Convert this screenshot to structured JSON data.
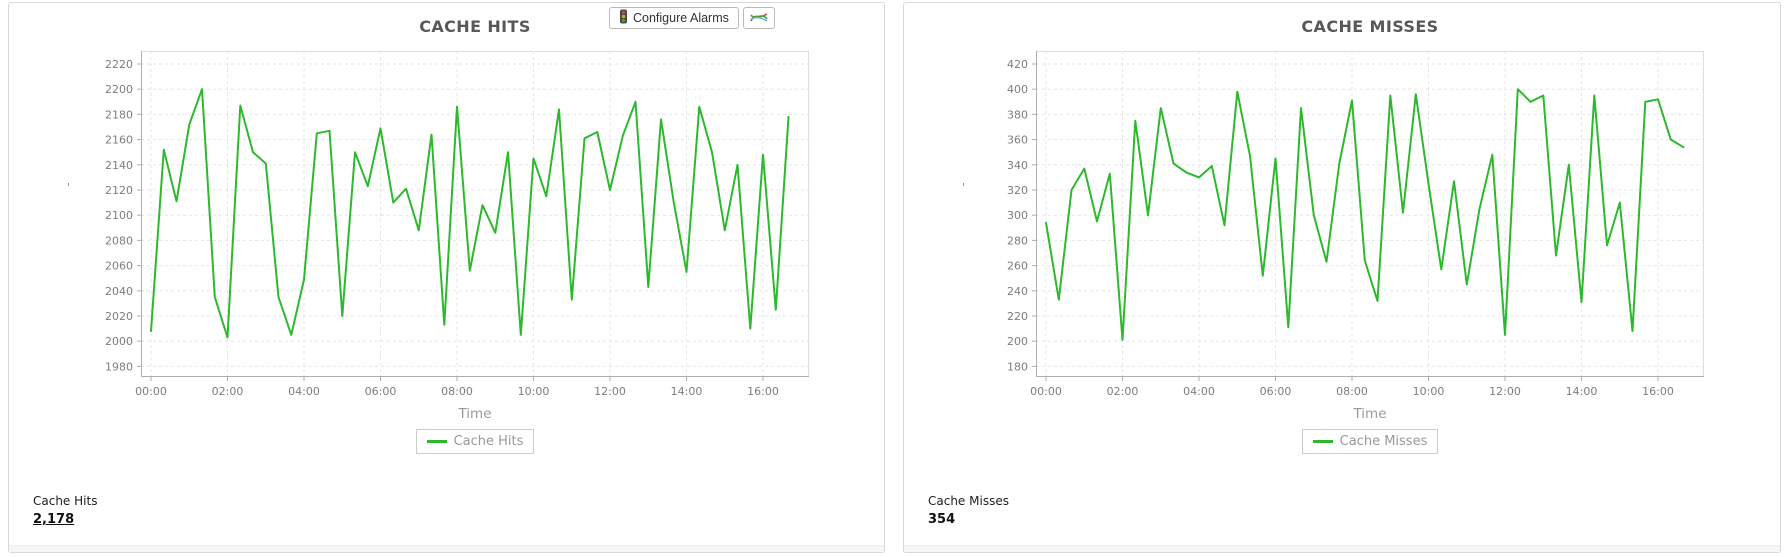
{
  "page": {
    "background": "#ffffff"
  },
  "toolbar": {
    "configure_alarms_label": "Configure Alarms",
    "traffic_light_icon": "traffic-light-icon",
    "mini_chart_icon": "line-chart-icon"
  },
  "colors": {
    "series_green": "#2eb82e",
    "grid": "#e5e5e5",
    "axis": "#aeaeae",
    "title": "#58585a"
  },
  "y_axis_mark": "'",
  "chart_data": [
    {
      "type": "line",
      "title": "CACHE HITS",
      "xlabel": "Time",
      "legend": "Cache Hits",
      "footer_label": "Cache Hits",
      "footer_value": "2,178",
      "footer_value_underline": true,
      "line_color": "#2eb82e",
      "grid": true,
      "legend_position": "bottom",
      "y_min": 1980,
      "y_max": 2220,
      "y_step": 20,
      "x_ticks": [
        "00:00",
        "02:00",
        "04:00",
        "06:00",
        "08:00",
        "10:00",
        "12:00",
        "14:00",
        "16:00"
      ],
      "x_tick_hours": [
        0,
        2,
        4,
        6,
        8,
        10,
        12,
        14,
        16
      ],
      "sample_interval_minutes": 20,
      "values": [
        2008,
        2152,
        2111,
        2172,
        2200,
        2035,
        2003,
        2187,
        2150,
        2141,
        2035,
        2005,
        2049,
        2165,
        2167,
        2020,
        2150,
        2123,
        2169,
        2110,
        2121,
        2088,
        2164,
        2013,
        2186,
        2056,
        2108,
        2086,
        2150,
        2005,
        2145,
        2115,
        2184,
        2033,
        2161,
        2166,
        2120,
        2163,
        2190,
        2043,
        2176,
        2110,
        2055,
        2186,
        2150,
        2088,
        2140,
        2010,
        2148,
        2025,
        2178
      ]
    },
    {
      "type": "line",
      "title": "CACHE MISSES",
      "xlabel": "Time",
      "legend": "Cache Misses",
      "footer_label": "Cache Misses",
      "footer_value": "354",
      "footer_value_underline": false,
      "line_color": "#2eb82e",
      "grid": true,
      "legend_position": "bottom",
      "y_min": 180,
      "y_max": 420,
      "y_step": 20,
      "x_ticks": [
        "00:00",
        "02:00",
        "04:00",
        "06:00",
        "08:00",
        "10:00",
        "12:00",
        "14:00",
        "16:00"
      ],
      "x_tick_hours": [
        0,
        2,
        4,
        6,
        8,
        10,
        12,
        14,
        16
      ],
      "sample_interval_minutes": 20,
      "values": [
        294,
        233,
        320,
        337,
        295,
        333,
        201,
        375,
        300,
        385,
        341,
        334,
        330,
        339,
        292,
        398,
        347,
        252,
        345,
        211,
        385,
        300,
        263,
        341,
        391,
        264,
        232,
        395,
        302,
        396,
        325,
        257,
        327,
        245,
        305,
        348,
        205,
        400,
        390,
        395,
        268,
        340,
        231,
        395,
        276,
        310,
        208,
        390,
        392,
        360,
        354
      ]
    }
  ]
}
